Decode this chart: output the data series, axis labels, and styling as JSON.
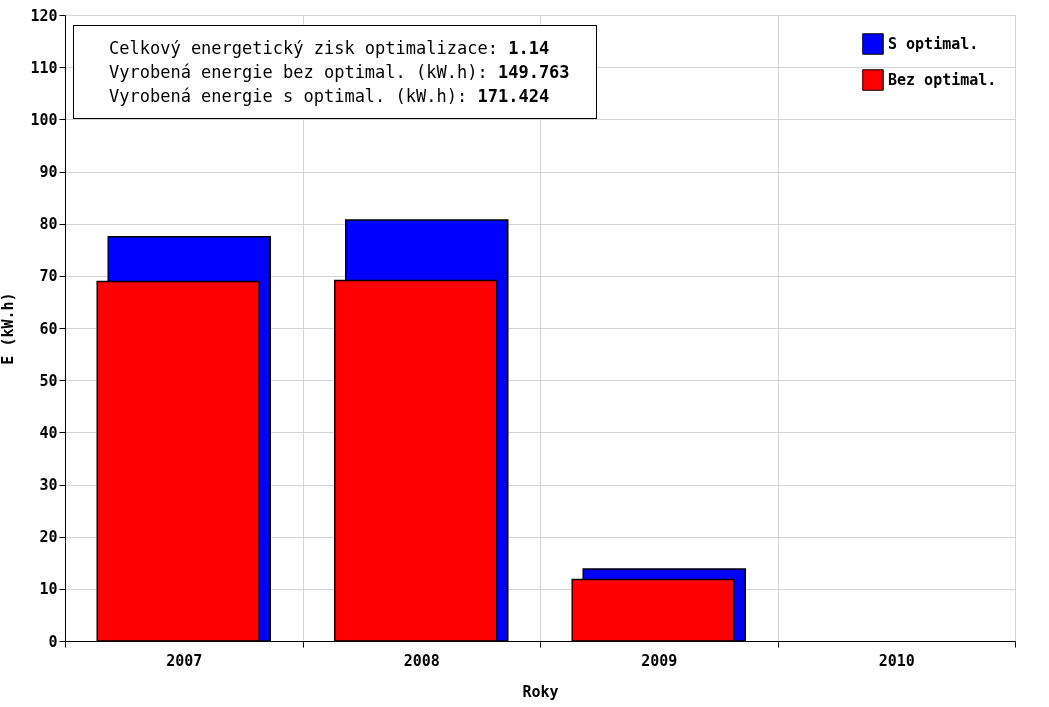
{
  "chart_data": {
    "type": "bar",
    "xlabel": "Roky",
    "ylabel": "E (kW.h)",
    "categories": [
      "2007",
      "2008",
      "2009",
      "2010"
    ],
    "series": [
      {
        "name": "S optimal.",
        "color": "#0000ff",
        "values": [
          77.5,
          80.7,
          13.8,
          null
        ]
      },
      {
        "name": "Bez optimal.",
        "color": "#ff0000",
        "values": [
          68.9,
          69.1,
          11.8,
          null
        ]
      }
    ],
    "ylim": [
      0,
      120
    ],
    "yticks": [
      0,
      10,
      20,
      30,
      40,
      50,
      60,
      70,
      80,
      90,
      100,
      110,
      120
    ],
    "grid": true,
    "legend": "top right",
    "annotations": [
      "Celkový energetický zisk optimalizace: 1.14",
      "Vyrobená energie bez optimal. (kW.h): 149.763",
      "Vyrobená energie s optimal. (kW.h): 171.424"
    ]
  }
}
